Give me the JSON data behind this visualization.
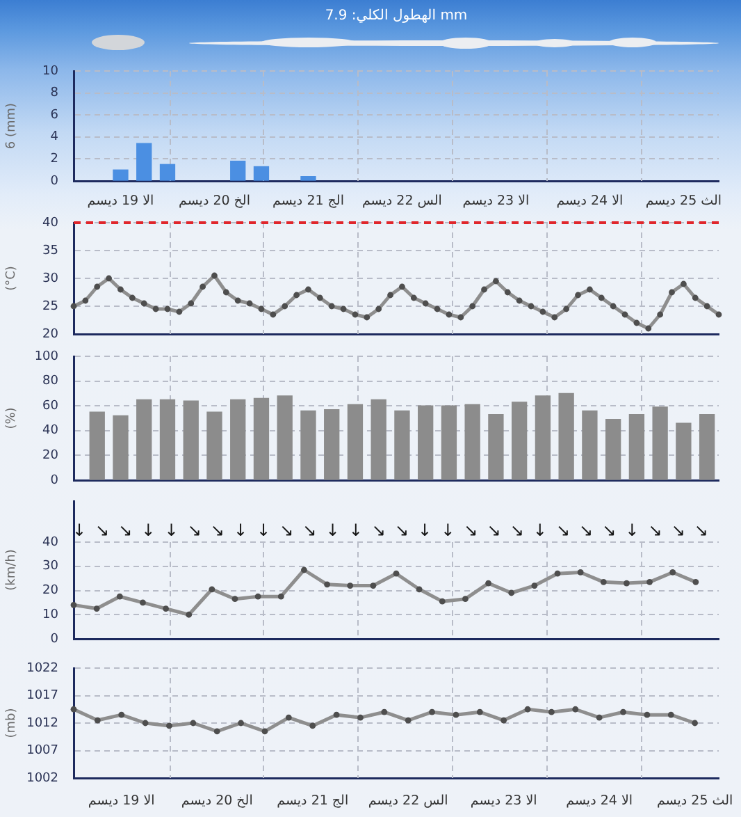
{
  "chart_data": [
    {
      "type": "bar",
      "title": "الهطول الكلي: 7.9 mm",
      "ylabel": "6 (mm)",
      "categories": [
        null,
        null,
        null,
        null,
        "الا 19 ديسم",
        null,
        null,
        null,
        null,
        null,
        null,
        null,
        "الخ 20 ديسم",
        null,
        null,
        null,
        null,
        null,
        null,
        null,
        "الج 21 ديسم",
        null,
        null,
        null,
        null,
        null,
        null,
        null,
        "الس 22 ديسم",
        null,
        null,
        null,
        null,
        null,
        null,
        null,
        "الا 23 ديسم",
        null,
        null,
        null,
        null,
        null,
        null,
        null,
        "الا 24 ديسم",
        null,
        null,
        null,
        null,
        null,
        null,
        null,
        "الث 25 ديسم",
        null,
        null,
        null
      ],
      "values": [
        null,
        null,
        null,
        null,
        1,
        null,
        3.4,
        null,
        1.5,
        null,
        null,
        null,
        null,
        null,
        1.8,
        null,
        1.3,
        null,
        null,
        null,
        0.4,
        null,
        null,
        null,
        null,
        null,
        null,
        null,
        null,
        null,
        null,
        null,
        null,
        null,
        null,
        null,
        null,
        null,
        null,
        null,
        null,
        null,
        null,
        null,
        null,
        null,
        null,
        null,
        null,
        null,
        null,
        null,
        null,
        null,
        null,
        null
      ],
      "color": "#4b8fe2",
      "ylim": [
        0,
        10
      ],
      "yticks": [
        0,
        2,
        4,
        6,
        8,
        10
      ],
      "grid": true
    },
    {
      "type": "line",
      "ylabel": "(°C)",
      "categories": [
        null,
        null,
        null,
        null,
        null,
        null,
        null,
        null,
        null,
        null,
        null,
        null,
        null,
        null,
        null,
        null,
        null,
        null,
        null,
        null,
        null,
        null,
        null,
        null,
        null,
        null,
        null,
        null,
        null,
        null,
        null,
        null,
        null,
        null,
        null,
        null,
        null,
        null,
        null,
        null,
        null,
        null,
        null,
        null,
        null,
        null,
        null,
        null,
        null,
        null,
        null,
        null,
        null,
        null,
        null,
        null
      ],
      "values": [
        25,
        26,
        28.5,
        30,
        28,
        26.5,
        25.5,
        24.5,
        24.5,
        24,
        25.5,
        28.5,
        30.5,
        27.5,
        26,
        25.5,
        24.5,
        23.5,
        25,
        27,
        28,
        26.5,
        25,
        24.5,
        23.5,
        23,
        24.5,
        27,
        28.5,
        26.5,
        25.5,
        24.5,
        23.5,
        23,
        25,
        28,
        29.5,
        27.5,
        26,
        25,
        24,
        23,
        24.5,
        27,
        28,
        26.5,
        25,
        23.5,
        22,
        21,
        23.5,
        27.5,
        29,
        26.5,
        25,
        23.5
      ],
      "color": "#8e8e8e",
      "marker": "circle",
      "tick_labels": "y",
      "ylim": [
        20,
        40
      ],
      "yticks": [
        20,
        25,
        30,
        35,
        40
      ],
      "grid": true,
      "ref_lines": [
        {
          "axis": "y",
          "value": 40,
          "color": "#e0262b",
          "line_style": "dashed"
        }
      ]
    },
    {
      "type": "bar",
      "ylabel": "(%)",
      "categories": [
        null,
        null,
        null,
        null,
        null,
        null,
        null,
        null,
        null,
        null,
        null,
        null,
        null,
        null,
        null,
        null,
        null,
        null,
        null,
        null,
        null,
        null,
        null,
        null,
        null,
        null,
        null,
        null,
        null,
        null,
        null,
        null,
        null,
        null,
        null,
        null,
        null,
        null,
        null,
        null,
        null,
        null,
        null,
        null,
        null,
        null,
        null,
        null,
        null,
        null,
        null,
        null,
        null,
        null,
        null,
        null
      ],
      "values": [
        null,
        null,
        55,
        null,
        52,
        null,
        65,
        null,
        65,
        null,
        64,
        null,
        55,
        null,
        65,
        null,
        66,
        null,
        68,
        null,
        56,
        null,
        57,
        null,
        61,
        null,
        65,
        null,
        56,
        null,
        60,
        null,
        60,
        null,
        61,
        null,
        53,
        null,
        63,
        null,
        68,
        null,
        70,
        null,
        56,
        null,
        49,
        null,
        53,
        null,
        59,
        null,
        46,
        null,
        53,
        null
      ],
      "color": "#8c8c8c",
      "tick_labels": "y",
      "ylim": [
        0,
        100
      ],
      "yticks": [
        0,
        20,
        40,
        60,
        80,
        100
      ],
      "grid": true
    },
    {
      "type": "line",
      "ylabel": "(km/h)",
      "categories": [
        null,
        null,
        null,
        null,
        null,
        null,
        null,
        null,
        null,
        null,
        null,
        null,
        null,
        null,
        null,
        null,
        null,
        null,
        null,
        null,
        null,
        null,
        null,
        null,
        null,
        null,
        null,
        null,
        null
      ],
      "values": [
        14,
        12.5,
        17.5,
        15,
        12.5,
        10,
        20.5,
        16.5,
        17.5,
        17.5,
        28.5,
        22.5,
        22,
        22,
        27,
        20.5,
        15.5,
        16.5,
        23,
        19,
        22,
        27,
        27.5,
        23.5,
        23,
        23.5,
        27.5,
        23.5,
        null
      ],
      "color": "#8e8e8e",
      "marker": "circle",
      "tick_labels": "y",
      "ylim": [
        0,
        57
      ],
      "yticks": [
        0,
        10,
        20,
        30,
        40
      ],
      "grid": true,
      "annotations": [
        "↓",
        "↘",
        "↘",
        "↓",
        "↓",
        "↘",
        "↘",
        "↓",
        "↓",
        "↘",
        "↘",
        "↓",
        "↓",
        "↘",
        "↘",
        "↓",
        "↓",
        "↘",
        "↘",
        "↘",
        "↓",
        "↘",
        "↘",
        "↘",
        "↓",
        "↘",
        "↘",
        "↘"
      ]
    },
    {
      "type": "line",
      "ylabel": "(mb)",
      "categories": [
        null,
        null,
        "الا 19 ديسم",
        null,
        null,
        null,
        "الخ 20 ديسم",
        null,
        null,
        null,
        "الج 21 ديسم",
        null,
        null,
        null,
        "الس 22 ديسم",
        null,
        null,
        null,
        "الا 23 ديسم",
        null,
        null,
        null,
        "الا 24 ديسم",
        null,
        null,
        null,
        "الث 25 ديسم",
        null
      ],
      "values": [
        1014.5,
        1012.5,
        1013.5,
        1012,
        1011.5,
        1012,
        1010.5,
        1012,
        1010.5,
        1013,
        1011.5,
        1013.5,
        1013,
        1014,
        1012.5,
        1014,
        1013.5,
        1014,
        1012.5,
        1014.5,
        1014,
        1014.5,
        1013,
        1014,
        1013.5,
        1013.5,
        1012,
        null
      ],
      "color": "#8e8e8e",
      "marker": "circle",
      "ylim": [
        1002,
        1022
      ],
      "yticks": [
        1002,
        1007,
        1012,
        1017,
        1022
      ],
      "grid": true
    }
  ]
}
